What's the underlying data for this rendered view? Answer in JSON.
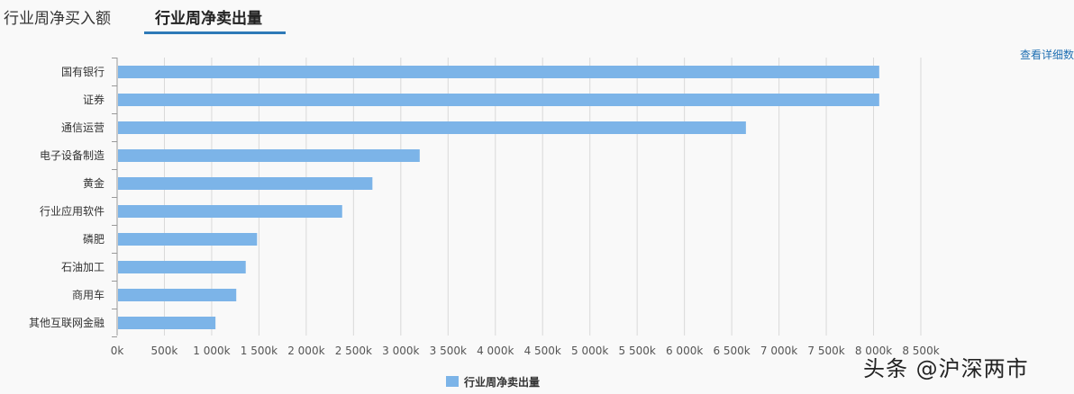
{
  "tabs": [
    {
      "label": "行业周净买入额",
      "active": false
    },
    {
      "label": "行业周净卖出量",
      "active": true
    }
  ],
  "detail_link": "查看详细数",
  "watermark": "头条 @沪深两市",
  "colors": {
    "bar": "#7cb4e8",
    "grid": "#d9d9d9",
    "axis": "#999999",
    "tab_underline": "#2e7ab8"
  },
  "chart_data": {
    "type": "bar",
    "orientation": "horizontal",
    "categories": [
      "国有银行",
      "证券",
      "通信运营",
      "电子设备制造",
      "黄金",
      "行业应用软件",
      "磷肥",
      "石油加工",
      "商用车",
      "其他互联网金融"
    ],
    "series": [
      {
        "name": "行业周净卖出量",
        "values": [
          8060,
          8060,
          6650,
          3200,
          2700,
          2380,
          1480,
          1360,
          1260,
          1040
        ]
      }
    ],
    "xlim": [
      0,
      8500
    ],
    "xticks": [
      "0k",
      "500k",
      "1 000k",
      "1 500k",
      "2 000k",
      "2 500k",
      "3 000k",
      "3 500k",
      "4 000k",
      "4 500k",
      "5 000k",
      "5 500k",
      "6 000k",
      "6 500k",
      "7 000k",
      "7 500k",
      "8 000k",
      "8 500k"
    ],
    "grid": true,
    "legend_position": "bottom-center"
  }
}
